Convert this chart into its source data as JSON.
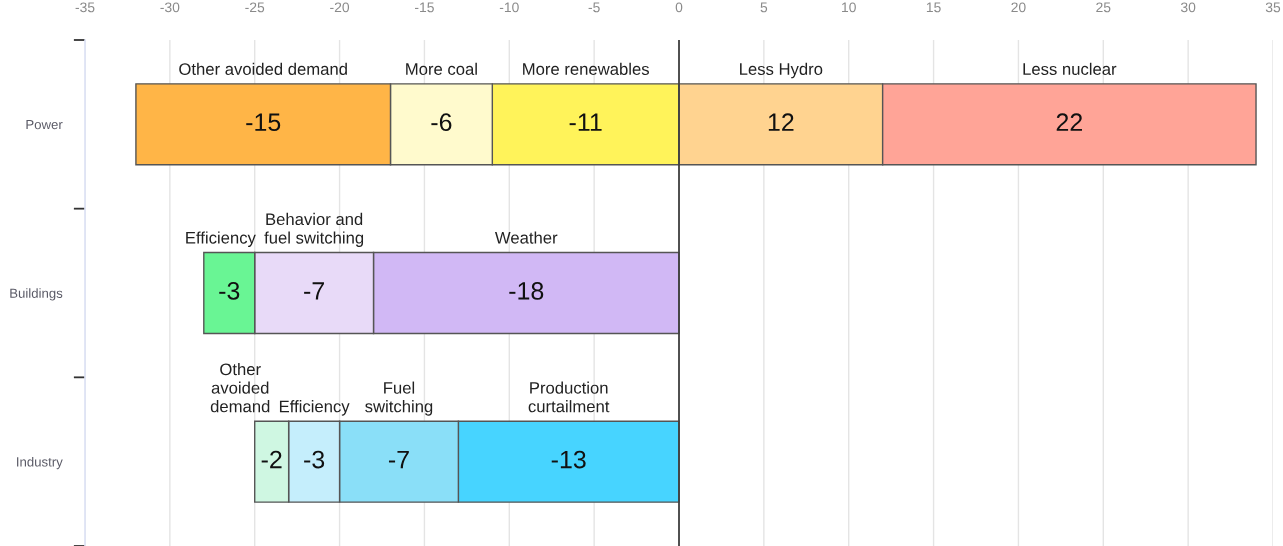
{
  "chart_data": {
    "type": "bar",
    "orientation": "horizontal",
    "stacked": true,
    "data_labels": true,
    "grid": "x",
    "categories": [
      "Power",
      "Buildings",
      "Industry"
    ],
    "xlim": [
      -35,
      35
    ],
    "xticks": [
      -35,
      -30,
      -25,
      -20,
      -15,
      -10,
      -5,
      0,
      5,
      10,
      15,
      20,
      25,
      30,
      35
    ],
    "ref_lines": [
      {
        "axis": "x",
        "value": 0,
        "color": "#404040"
      }
    ],
    "series": [
      {
        "name": "More renewables",
        "color": "#fff35a",
        "values": [
          -11,
          null,
          null
        ]
      },
      {
        "name": "More coal",
        "color": "#fffacd",
        "values": [
          -6,
          null,
          null
        ]
      },
      {
        "name": "Other avoided demand",
        "color": "#ffb547",
        "values": [
          -15,
          null,
          null
        ]
      },
      {
        "name": "Less Hydro",
        "color": "#ffd390",
        "values": [
          12,
          null,
          null
        ]
      },
      {
        "name": "Less nuclear",
        "color": "#ffa497",
        "values": [
          22,
          null,
          null
        ]
      },
      {
        "name": "Weather",
        "color": "#d1b8f5",
        "values": [
          null,
          -18,
          null
        ]
      },
      {
        "name": "Behavior and\nfuel switching",
        "color": "#e8daf8",
        "values": [
          null,
          -7,
          null
        ]
      },
      {
        "name": "Efficiency",
        "color": "#69f594",
        "values": [
          null,
          -3,
          null
        ]
      },
      {
        "name": "Production\ncurtailment",
        "color": "#47d4ff",
        "values": [
          null,
          null,
          -13
        ]
      },
      {
        "name": "Fuel\nswitching",
        "color": "#8adff8",
        "values": [
          null,
          null,
          -7
        ]
      },
      {
        "name": "Efficiency",
        "color": "#c5eefc",
        "values": [
          null,
          null,
          -3
        ]
      },
      {
        "name": "Other\navoided\ndemand",
        "color": "#cff7e2",
        "values": [
          null,
          null,
          -2
        ]
      }
    ]
  }
}
